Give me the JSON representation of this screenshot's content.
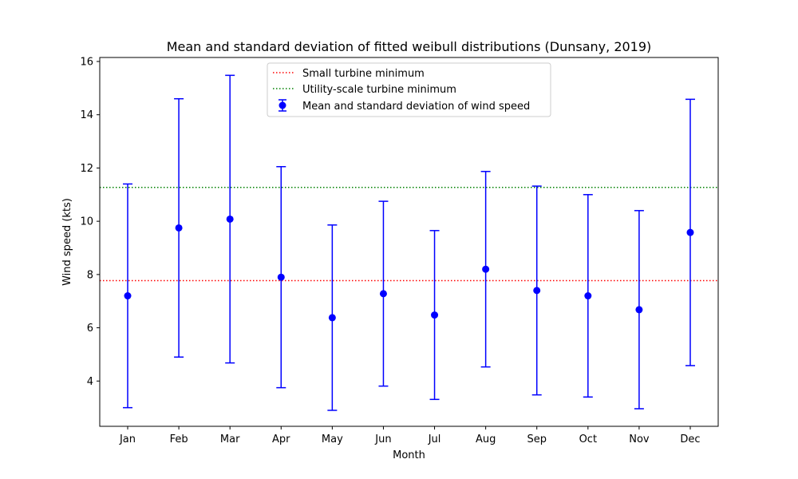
{
  "chart_data": {
    "type": "errorbar",
    "title": "Mean and standard deviation of fitted weibull distributions (Dunsany, 2019)",
    "xlabel": "Month",
    "ylabel": "Wind speed (kts)",
    "categories": [
      "Jan",
      "Feb",
      "Mar",
      "Apr",
      "May",
      "Jun",
      "Jul",
      "Aug",
      "Sep",
      "Oct",
      "Nov",
      "Dec"
    ],
    "series": [
      {
        "name": "Mean and standard deviation of wind speed",
        "color": "#0000ff",
        "mean": [
          7.2,
          9.75,
          10.08,
          7.9,
          6.38,
          7.28,
          6.48,
          8.2,
          7.4,
          7.2,
          6.68,
          9.58
        ],
        "std": [
          4.2,
          4.85,
          5.4,
          4.15,
          3.48,
          3.47,
          3.17,
          3.67,
          3.92,
          3.8,
          3.72,
          5.0
        ]
      }
    ],
    "reference_lines": [
      {
        "name": "Small turbine minimum",
        "value": 7.77,
        "color": "#ff0000",
        "style": "dotted"
      },
      {
        "name": "Utility-scale turbine minimum",
        "value": 11.27,
        "color": "#008000",
        "style": "dotted"
      }
    ],
    "ylim": [
      2.3,
      16.15
    ],
    "yticks": [
      4,
      6,
      8,
      10,
      12,
      14,
      16
    ],
    "grid": false,
    "legend_position": "upper center"
  }
}
